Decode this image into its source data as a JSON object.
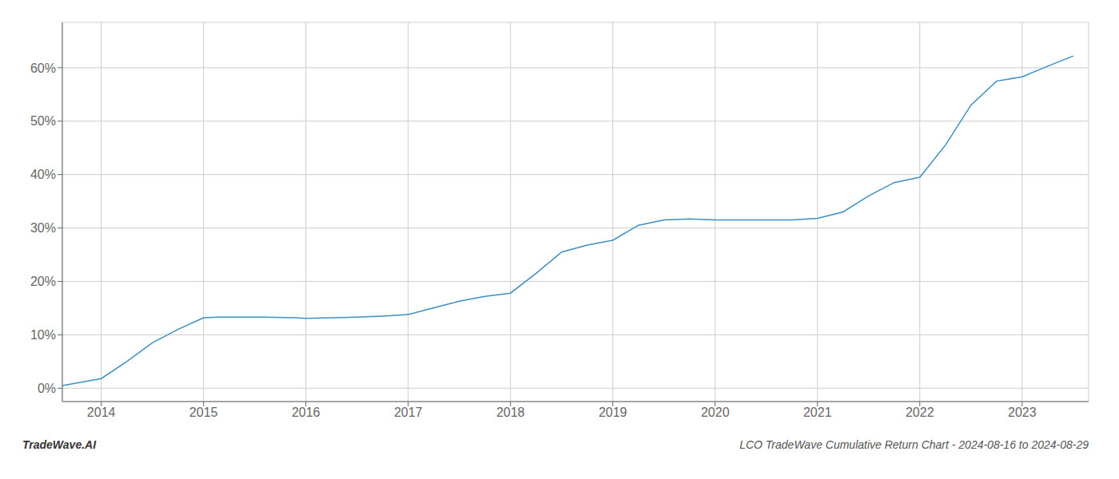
{
  "chart_data": {
    "type": "line",
    "title": "LCO TradeWave Cumulative Return Chart - 2024-08-16 to 2024-08-29",
    "annotations": [
      "TradeWave.AI"
    ],
    "x": [
      2013.62,
      2014.0,
      2014.25,
      2014.5,
      2014.75,
      2015.0,
      2015.15,
      2015.3,
      2015.6,
      2015.9,
      2016.0,
      2016.25,
      2016.5,
      2016.75,
      2017.0,
      2017.2,
      2017.5,
      2017.75,
      2018.0,
      2018.25,
      2018.5,
      2018.75,
      2019.0,
      2019.25,
      2019.5,
      2019.75,
      2020.0,
      2020.25,
      2020.5,
      2020.75,
      2021.0,
      2021.25,
      2021.5,
      2021.75,
      2022.0,
      2022.25,
      2022.5,
      2022.75,
      2023.0,
      2023.25,
      2023.5
    ],
    "values": [
      0.005,
      0.018,
      0.05,
      0.085,
      0.11,
      0.132,
      0.133,
      0.133,
      0.133,
      0.132,
      0.131,
      0.132,
      0.133,
      0.135,
      0.138,
      0.148,
      0.163,
      0.172,
      0.178,
      0.215,
      0.255,
      0.268,
      0.277,
      0.305,
      0.315,
      0.317,
      0.315,
      0.315,
      0.315,
      0.315,
      0.318,
      0.33,
      0.36,
      0.385,
      0.395,
      0.455,
      0.53,
      0.575,
      0.583,
      0.603,
      0.622
    ],
    "color": "#3a8fc7",
    "xlim": [
      2013.62,
      2023.65
    ],
    "ylim": [
      -0.025,
      0.685
    ],
    "xticks": [
      2014,
      2015,
      2016,
      2017,
      2018,
      2019,
      2020,
      2021,
      2022,
      2023
    ],
    "yticks": [
      {
        "value": 0.0,
        "label": "0%"
      },
      {
        "value": 0.1,
        "label": "10%"
      },
      {
        "value": 0.2,
        "label": "20%"
      },
      {
        "value": 0.3,
        "label": "30%"
      },
      {
        "value": 0.4,
        "label": "40%"
      },
      {
        "value": 0.5,
        "label": "50%"
      },
      {
        "value": 0.6,
        "label": "60%"
      }
    ],
    "grid": true
  }
}
